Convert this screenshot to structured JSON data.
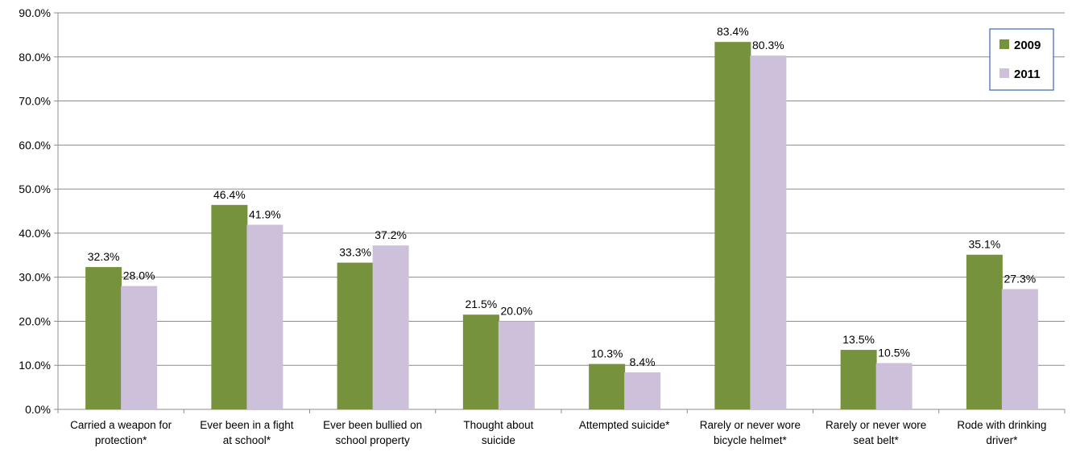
{
  "chart_data": {
    "type": "bar",
    "title": "",
    "xlabel": "",
    "ylabel": "",
    "ylim": [
      0,
      90
    ],
    "ytick_step": 10,
    "ytick_labels": [
      "0.0%",
      "10.0%",
      "20.0%",
      "30.0%",
      "40.0%",
      "50.0%",
      "60.0%",
      "70.0%",
      "80.0%",
      "90.0%"
    ],
    "grid": true,
    "legend_position": "top-right",
    "categories": [
      [
        "Carried a weapon for",
        "protection*"
      ],
      [
        "Ever been in a fight",
        "at school*"
      ],
      [
        "Ever been bullied on",
        "school property"
      ],
      [
        "Thought about",
        "suicide"
      ],
      [
        "Attempted suicide*"
      ],
      [
        "Rarely or never wore",
        "bicycle helmet*"
      ],
      [
        "Rarely or never  wore",
        "seat belt*"
      ],
      [
        "Rode with drinking",
        "driver*"
      ]
    ],
    "series": [
      {
        "name": "2009",
        "color": "#76923c",
        "values": [
          32.3,
          46.4,
          33.3,
          21.5,
          10.3,
          83.4,
          13.5,
          35.1
        ],
        "labels": [
          "32.3%",
          "46.4%",
          "33.3%",
          "21.5%",
          "10.3%",
          "83.4%",
          "13.5%",
          "35.1%"
        ]
      },
      {
        "name": "2011",
        "color": "#ccc0da",
        "values": [
          28.0,
          41.9,
          37.2,
          20.0,
          8.4,
          80.3,
          10.5,
          27.3
        ],
        "labels": [
          "28.0%",
          "41.9%",
          "37.2%",
          "20.0%",
          "8.4%",
          "80.3%",
          "10.5%",
          "27.3%"
        ]
      }
    ]
  }
}
